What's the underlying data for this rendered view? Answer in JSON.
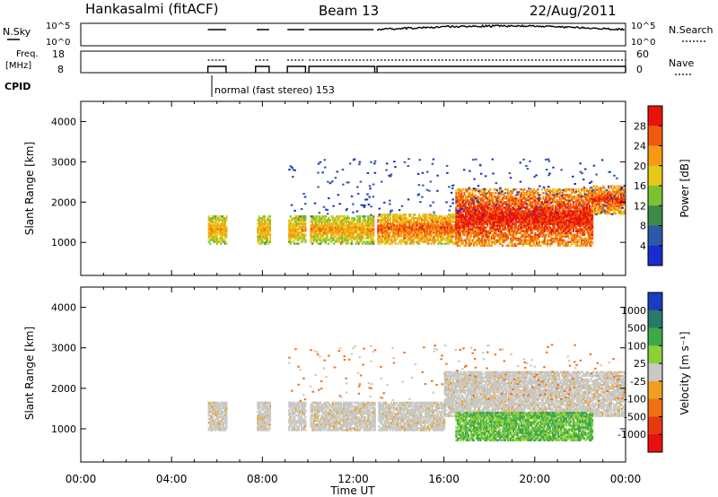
{
  "header": {
    "station": "Hankasalmi (fitACF)",
    "beam": "Beam 13",
    "date": "22/Aug/2011"
  },
  "aux_panel": {
    "left_top_label": "N.Sky",
    "left_top_ticks": [
      "10^5",
      "10^0"
    ],
    "right_top_label": "N.Search",
    "right_top_ticks": [
      "10^5",
      "10^0"
    ],
    "freq_label_line1": "Freq.",
    "freq_label_line2": "[MHz]",
    "freq_ticks": [
      "18",
      "8"
    ],
    "nave_label": "Nave",
    "nave_ticks": [
      "60",
      "0"
    ],
    "cpid_label": "CPID",
    "cpid_text": "normal (fast stereo) 153"
  },
  "chart_data": [
    {
      "type": "heatmap",
      "title": "Power",
      "ylabel": "Slant Range [km]",
      "xlabel": "",
      "xlim": [
        0,
        24
      ],
      "ylim": [
        180,
        4500
      ],
      "y_ticks": [
        "1000",
        "2000",
        "3000",
        "4000"
      ],
      "colorbar": {
        "label": "Power [dB]",
        "ticks": [
          "28",
          "24",
          "20",
          "16",
          "12",
          "8",
          "4"
        ],
        "colors": [
          "#e8140c",
          "#f05a0c",
          "#f79a12",
          "#e6c818",
          "#7cc230",
          "#3a8a4a",
          "#2a5aa8",
          "#1a2ccc"
        ]
      },
      "data_gaps_hours": [
        [
          0,
          5.6
        ],
        [
          6.4,
          7.7
        ],
        [
          8.3,
          9.1
        ],
        [
          9.9,
          10.05
        ],
        [
          12.95,
          13.05
        ]
      ],
      "bands": [
        {
          "t": [
            5.6,
            12.9
          ],
          "range_km": [
            950,
            1650
          ],
          "level_db": 14
        },
        {
          "t": [
            13.0,
            16.5
          ],
          "range_km": [
            950,
            1700
          ],
          "level_db": 18
        },
        {
          "t": [
            16.5,
            22.5
          ],
          "range_km": [
            900,
            2300
          ],
          "level_db": 22
        },
        {
          "t": [
            22.5,
            24.0
          ],
          "range_km": [
            1700,
            2400
          ],
          "level_db": 20
        }
      ]
    },
    {
      "type": "heatmap",
      "title": "Velocity",
      "ylabel": "Slant Range [km]",
      "xlabel": "Time UT",
      "x_ticks": [
        "00:00",
        "04:00",
        "08:00",
        "12:00",
        "16:00",
        "20:00",
        "00:00"
      ],
      "xlim": [
        0,
        24
      ],
      "ylim": [
        180,
        4500
      ],
      "y_ticks": [
        "1000",
        "2000",
        "3000",
        "4000"
      ],
      "colorbar": {
        "label": "Velocity [m s⁻¹]",
        "ticks": [
          "1000",
          "500",
          "100",
          "25",
          "-25",
          "-100",
          "-500",
          "-1000"
        ],
        "colors": [
          "#1a3cc0",
          "#2a7a6a",
          "#3ea84a",
          "#8ad03a",
          "#c8c8c4",
          "#f0a020",
          "#f07018",
          "#e83810",
          "#e81010"
        ]
      },
      "data_gaps_hours": [
        [
          0,
          5.6
        ],
        [
          6.4,
          7.7
        ],
        [
          8.3,
          9.1
        ],
        [
          9.9,
          10.05
        ],
        [
          12.95,
          13.05
        ]
      ],
      "bands": [
        {
          "t": [
            5.6,
            16.0
          ],
          "range_km": [
            950,
            1650
          ],
          "velocity": 0
        },
        {
          "t": [
            16.0,
            24.0
          ],
          "range_km": [
            1300,
            2400
          ],
          "velocity": 0
        },
        {
          "t": [
            16.5,
            22.5
          ],
          "range_km": [
            700,
            1400
          ],
          "velocity": 150
        }
      ]
    }
  ]
}
